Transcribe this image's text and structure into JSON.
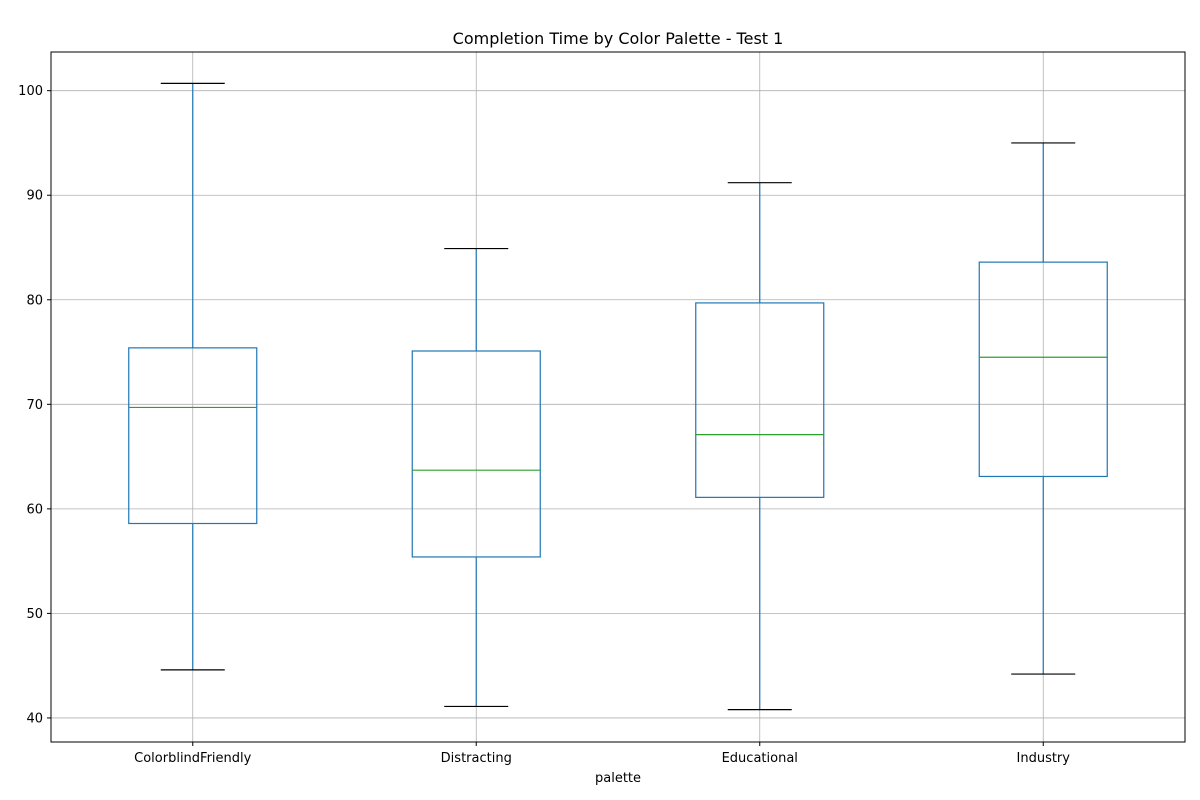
{
  "chart_data": {
    "type": "boxplot",
    "title": "Completion Time by Color Palette - Test 1",
    "xlabel": "palette",
    "ylabel": "",
    "ylim": [
      37.7,
      103.7
    ],
    "yticks": [
      40,
      50,
      60,
      70,
      80,
      90,
      100
    ],
    "grid": true,
    "categories": [
      "ColorblindFriendly",
      "Distracting",
      "Educational",
      "Industry"
    ],
    "boxes": [
      {
        "category": "ColorblindFriendly",
        "whisker_low": 44.6,
        "q1": 58.6,
        "median": 69.7,
        "q3": 75.4,
        "whisker_high": 100.7
      },
      {
        "category": "Distracting",
        "whisker_low": 41.1,
        "q1": 55.4,
        "median": 63.7,
        "q3": 75.1,
        "whisker_high": 84.9
      },
      {
        "category": "Educational",
        "whisker_low": 40.8,
        "q1": 61.1,
        "median": 67.1,
        "q3": 79.7,
        "whisker_high": 91.2
      },
      {
        "category": "Industry",
        "whisker_low": 44.2,
        "q1": 63.1,
        "median": 74.5,
        "q3": 83.6,
        "whisker_high": 95.0
      }
    ],
    "colors": {
      "box": "#1f77b4",
      "median": "#2ca02c",
      "cap": "#000000",
      "grid": "#b0b0b0"
    }
  }
}
